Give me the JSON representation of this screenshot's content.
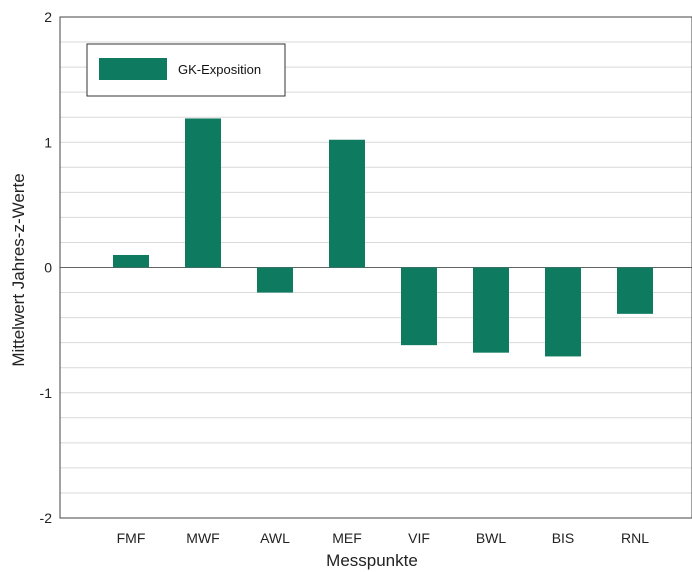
{
  "chart_data": {
    "type": "bar",
    "title": "",
    "xlabel": "Messpunkte",
    "ylabel": "Mittelwert Jahres-z-Werte",
    "ylim": [
      -2,
      2
    ],
    "yticks": [
      "-2",
      "-1",
      "0",
      "1",
      "2"
    ],
    "grid": true,
    "legend_position": "top-left",
    "categories": [
      "FMF",
      "MWF",
      "AWL",
      "MEF",
      "VIF",
      "BWL",
      "BIS",
      "RNL"
    ],
    "series": [
      {
        "name": "GK-Exposition",
        "color": "#0e7a60",
        "values": [
          0.1,
          1.19,
          -0.2,
          1.02,
          -0.62,
          -0.68,
          -0.71,
          -0.37
        ]
      }
    ]
  }
}
